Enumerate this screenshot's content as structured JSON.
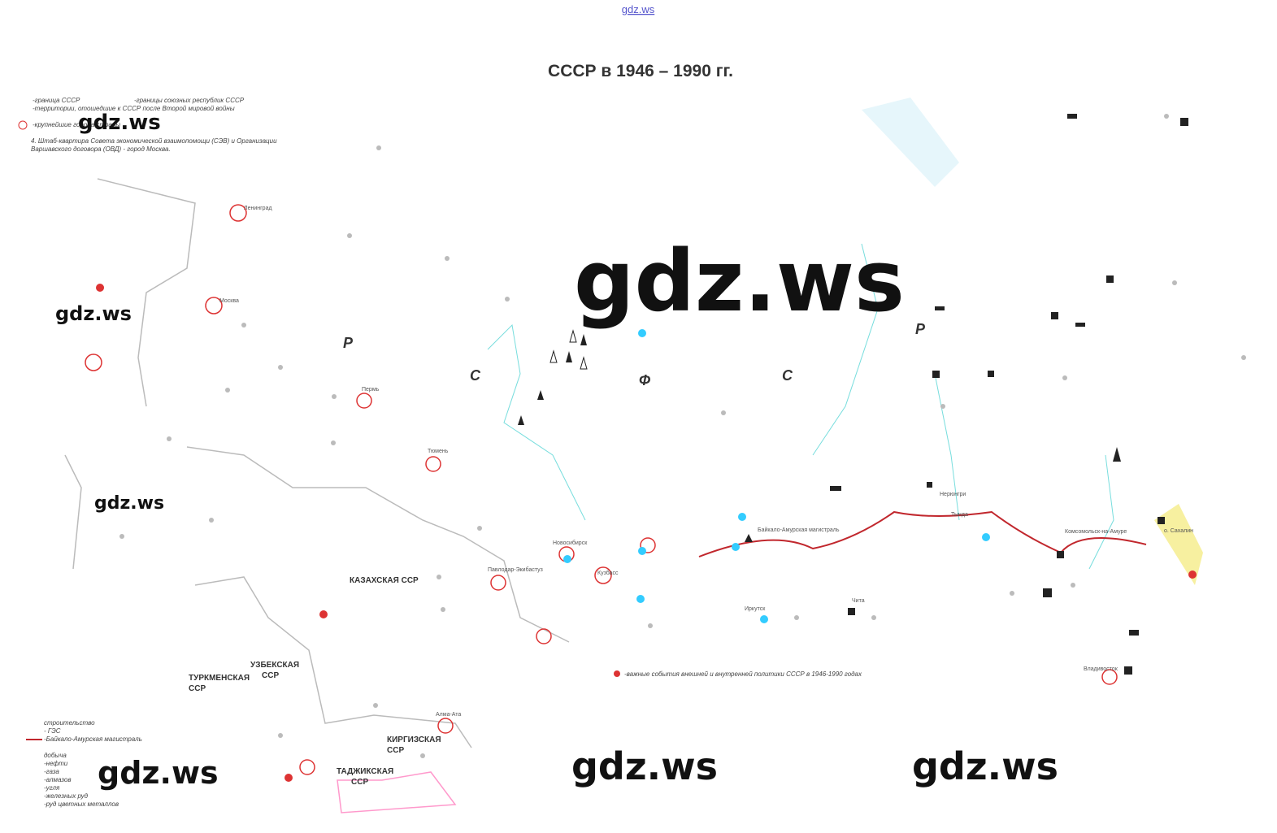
{
  "header": {
    "site": "gdz.ws",
    "title": "СССР в 1946 – 1990 гг."
  },
  "watermarks": [
    "gdz.ws",
    "gdz.ws",
    "gdz.ws",
    "gdz.ws",
    "gdz.ws",
    "gdz.ws",
    "gdz.ws"
  ],
  "legend_top": [
    "-граница СССР",
    "-границы союзных республик СССР",
    "-территории, отошедшие к СССР после Второй мировой войны",
    "-крупнейшие города страны",
    "4. Штаб-квартира Совета экономической взаимопомощи (СЭВ) и Организации",
    "Варшавского договора (ОВД) - город Москва."
  ],
  "legend_bottom": [
    "строительство",
    "- ГЭС",
    "-Байкало-Амурская магистраль",
    "добыча",
    "-нефти",
    "-газа",
    "-алмазов",
    "-угля",
    "-железных руд",
    "-руд цветных металлов"
  ],
  "events_legend": "-важные события внешней и внутренней политики СССР в 1946-1990 годах",
  "regions": [
    "Р",
    "С",
    "Ф",
    "С",
    "Р",
    "КАЗАХСКАЯ ССР",
    "УЗБЕКСКАЯ",
    "ССР",
    "ТУРКМЕНСКАЯ",
    "ССР",
    "КИРГИЗСКАЯ",
    "ССР",
    "ТАДЖИКСКАЯ",
    "ССР"
  ],
  "cities": [
    "Ленинград",
    "Москва",
    "Пермь",
    "Тюмень",
    "Новосибирск",
    "Кузбасс",
    "Павлодар-Экибастуз",
    "Иркутск",
    "Чита",
    "Нерюнгри",
    "Тында",
    "Комсомольск-на-Амуре",
    "Владивосток",
    "Алма-Ата",
    "о. Сахалин",
    "Байкало-Амурская магистраль"
  ]
}
